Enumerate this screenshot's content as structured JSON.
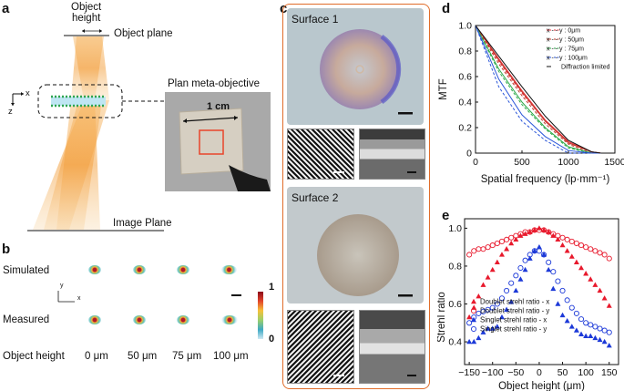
{
  "panel_labels": {
    "a": "a",
    "b": "b",
    "c": "c",
    "d": "d",
    "e": "e"
  },
  "panel_a": {
    "object_height": "Object\nheight",
    "object_height_l1": "Object",
    "object_height_l2": "height",
    "object_plane": "Object plane",
    "image_plane": "Image Plane",
    "plan_meta_objective": "Plan meta-objective",
    "scale": "1 cm",
    "axis_x": "x",
    "axis_z": "z"
  },
  "panel_b": {
    "row_simulated": "Simulated",
    "row_measured": "Measured",
    "row_object_height": "Object height",
    "heights": [
      "0 μm",
      "50 μm",
      "75 μm",
      "100 μm"
    ],
    "colorbar_max": "1",
    "colorbar_min": "0",
    "axis_y": "y",
    "axis_x": "x"
  },
  "panel_c": {
    "surface1": "Surface 1",
    "surface2": "Surface 2"
  },
  "chart_data": [
    {
      "type": "line",
      "panel": "d",
      "xlabel": "Spatial frequency (lp·mm⁻¹)",
      "ylabel": "MTF",
      "xlim": [
        0,
        1500
      ],
      "ylim": [
        0,
        1.0
      ],
      "xticks": [
        "0",
        "500",
        "1000",
        "1500"
      ],
      "yticks": [
        "0",
        "0.2",
        "0.4",
        "0.6",
        "0.8",
        "1.0"
      ],
      "legend": [
        "x - - y : 0μm",
        "x - - y : 50μm",
        "x - - y : 75μm",
        "x - - y : 100μm",
        "Diffraction limited"
      ],
      "colors": [
        "#e8323c",
        "#c0392b",
        "#2eaa4a",
        "#2b57d9",
        "#111111"
      ],
      "x": [
        0,
        250,
        500,
        750,
        1000,
        1250,
        1350
      ],
      "series": [
        {
          "name": "0μm x",
          "values": [
            1.0,
            0.74,
            0.49,
            0.26,
            0.09,
            0.01,
            0.0
          ]
        },
        {
          "name": "0μm y",
          "values": [
            1.0,
            0.72,
            0.47,
            0.25,
            0.08,
            0.01,
            0.0
          ]
        },
        {
          "name": "50μm x",
          "values": [
            1.0,
            0.73,
            0.48,
            0.25,
            0.08,
            0.01,
            0.0
          ]
        },
        {
          "name": "50μm y",
          "values": [
            1.0,
            0.7,
            0.45,
            0.23,
            0.07,
            0.0,
            0.0
          ]
        },
        {
          "name": "75μm x",
          "values": [
            1.0,
            0.66,
            0.4,
            0.2,
            0.05,
            0.0,
            0.0
          ]
        },
        {
          "name": "75μm y",
          "values": [
            1.0,
            0.64,
            0.38,
            0.19,
            0.04,
            0.0,
            0.0
          ]
        },
        {
          "name": "100μm x",
          "values": [
            1.0,
            0.58,
            0.3,
            0.13,
            0.02,
            0.0,
            0.0
          ]
        },
        {
          "name": "100μm y",
          "values": [
            1.0,
            0.52,
            0.25,
            0.1,
            0.0,
            0.0,
            0.0
          ]
        },
        {
          "name": "Diffraction limited",
          "values": [
            1.0,
            0.76,
            0.52,
            0.29,
            0.1,
            0.01,
            0.0
          ]
        }
      ]
    },
    {
      "type": "scatter",
      "panel": "e",
      "xlabel": "Object height (μm)",
      "ylabel": "Strehl ratio",
      "xlim": [
        -160,
        170
      ],
      "ylim": [
        0.28,
        1.05
      ],
      "xticks": [
        -150,
        -100,
        -50,
        0,
        50,
        100,
        150
      ],
      "yticks": [
        "0.4",
        "0.6",
        "0.8",
        "1.0"
      ],
      "legend": [
        "Doublet strehl ratio - x",
        "Doublet strehl ratio - y",
        "Singlet strehl ratio - x",
        "Singlet strehl ratio - y"
      ],
      "series": [
        {
          "name": "Doublet strehl ratio - x",
          "color": "#e8192c",
          "marker": "filled-triangle",
          "x": [
            -150,
            -140,
            -130,
            -120,
            -110,
            -100,
            -90,
            -80,
            -70,
            -60,
            -50,
            -40,
            -30,
            -20,
            -10,
            0,
            10,
            20,
            30,
            40,
            50,
            60,
            70,
            80,
            90,
            100,
            110,
            120,
            130,
            140,
            150
          ],
          "y": [
            0.53,
            0.58,
            0.64,
            0.7,
            0.74,
            0.78,
            0.82,
            0.86,
            0.89,
            0.92,
            0.94,
            0.96,
            0.97,
            0.98,
            0.99,
            1.0,
            0.99,
            0.98,
            0.96,
            0.94,
            0.91,
            0.88,
            0.85,
            0.82,
            0.79,
            0.76,
            0.73,
            0.7,
            0.67,
            0.63,
            0.59
          ]
        },
        {
          "name": "Doublet strehl ratio - y",
          "color": "#e8192c",
          "marker": "open-circle",
          "x": [
            -150,
            -140,
            -130,
            -120,
            -110,
            -100,
            -90,
            -80,
            -70,
            -60,
            -50,
            -40,
            -30,
            -20,
            -10,
            0,
            10,
            20,
            30,
            40,
            50,
            60,
            70,
            80,
            90,
            100,
            110,
            120,
            130,
            140,
            150
          ],
          "y": [
            0.86,
            0.88,
            0.89,
            0.89,
            0.9,
            0.91,
            0.92,
            0.93,
            0.94,
            0.95,
            0.96,
            0.97,
            0.98,
            0.98,
            0.99,
            0.99,
            0.99,
            0.98,
            0.97,
            0.96,
            0.95,
            0.94,
            0.93,
            0.92,
            0.91,
            0.9,
            0.89,
            0.88,
            0.87,
            0.86,
            0.84
          ]
        },
        {
          "name": "Singlet strehl ratio - x",
          "color": "#1c39d8",
          "marker": "filled-triangle",
          "x": [
            -150,
            -140,
            -130,
            -120,
            -110,
            -100,
            -90,
            -80,
            -70,
            -60,
            -50,
            -40,
            -30,
            -20,
            -10,
            0,
            10,
            20,
            30,
            40,
            50,
            60,
            70,
            80,
            90,
            100,
            110,
            120,
            130,
            140,
            150
          ],
          "y": [
            0.4,
            0.4,
            0.42,
            0.45,
            0.47,
            0.47,
            0.48,
            0.53,
            0.57,
            0.61,
            0.67,
            0.73,
            0.78,
            0.84,
            0.88,
            0.9,
            0.86,
            0.78,
            0.68,
            0.6,
            0.54,
            0.51,
            0.48,
            0.46,
            0.44,
            0.43,
            0.43,
            0.42,
            0.41,
            0.4,
            0.38
          ]
        },
        {
          "name": "Singlet strehl ratio - y",
          "color": "#1c39d8",
          "marker": "open-circle",
          "x": [
            -150,
            -140,
            -130,
            -120,
            -110,
            -100,
            -90,
            -80,
            -70,
            -60,
            -50,
            -40,
            -30,
            -20,
            -10,
            0,
            10,
            20,
            30,
            40,
            50,
            60,
            70,
            80,
            90,
            100,
            110,
            120,
            130,
            140,
            150
          ],
          "y": [
            0.5,
            0.53,
            0.55,
            0.56,
            0.57,
            0.58,
            0.6,
            0.63,
            0.67,
            0.71,
            0.75,
            0.79,
            0.83,
            0.86,
            0.88,
            0.88,
            0.86,
            0.82,
            0.77,
            0.72,
            0.67,
            0.62,
            0.58,
            0.55,
            0.52,
            0.5,
            0.49,
            0.48,
            0.47,
            0.46,
            0.45
          ]
        }
      ]
    }
  ]
}
